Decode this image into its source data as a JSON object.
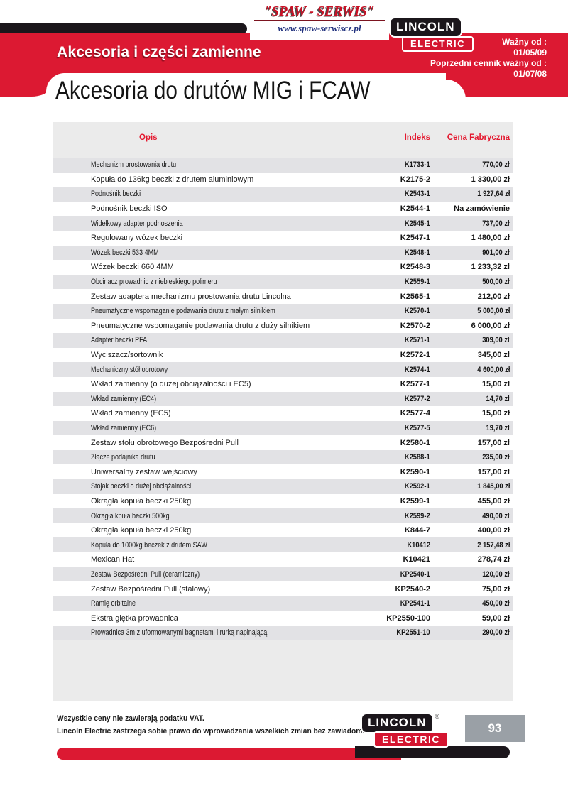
{
  "supplier": {
    "name": "\"SPAW - SERWIS\"",
    "url": "www.spaw-serwiscz.pl"
  },
  "brand": {
    "line1": "LINCOLN",
    "line2": "ELECTRIC",
    "registered": "®"
  },
  "validity": {
    "label_current": "Ważny od :",
    "date_current": "01/05/09",
    "label_previous": "Poprzedni cennik ważny od :",
    "date_previous": "01/07/08"
  },
  "section_title": "Akcesoria i części zamienne",
  "page_title": "Akcesoria do drutów MIG i FCAW",
  "table": {
    "headers": {
      "desc": "Opis",
      "index": "Indeks",
      "price": "Cena Fabryczna"
    },
    "rows": [
      {
        "desc": "Mechanizm prostowania drutu",
        "index": "K1733-1",
        "price": "770,00 zł"
      },
      {
        "desc": "Kopuła do 136kg beczki z drutem aluminiowym",
        "index": "K2175-2",
        "price": "1 330,00 zł"
      },
      {
        "desc": "Podnośnik beczki",
        "index": "K2543-1",
        "price": "1 927,64 zł"
      },
      {
        "desc": "Podnośnik beczki ISO",
        "index": "K2544-1",
        "price": "Na zamówienie"
      },
      {
        "desc": "Widełkowy adapter podnoszenia",
        "index": "K2545-1",
        "price": "737,00 zł"
      },
      {
        "desc": "Regulowany wózek beczki",
        "index": "K2547-1",
        "price": "1 480,00 zł"
      },
      {
        "desc": "Wózek beczki 533 4MM",
        "index": "K2548-1",
        "price": "901,00 zł"
      },
      {
        "desc": "Wózek beczki 660 4MM",
        "index": "K2548-3",
        "price": "1 233,32 zł"
      },
      {
        "desc": "Obcinacz prowadnic z niebieskiego polimeru",
        "index": "K2559-1",
        "price": "500,00 zł"
      },
      {
        "desc": "Zestaw adaptera mechanizmu prostowania drutu Lincolna",
        "index": "K2565-1",
        "price": "212,00 zł"
      },
      {
        "desc": "Pneumatyczne wspomaganie podawania drutu z małym silnikiem",
        "index": "K2570-1",
        "price": "5 000,00 zł"
      },
      {
        "desc": "Pneumatyczne wspomaganie podawania drutu z duży silnikiem",
        "index": "K2570-2",
        "price": "6 000,00 zł"
      },
      {
        "desc": "Adapter beczki PFA",
        "index": "K2571-1",
        "price": "309,00 zł"
      },
      {
        "desc": "Wyciszacz/sortownik",
        "index": "K2572-1",
        "price": "345,00 zł"
      },
      {
        "desc": "Mechaniczny stół obrotowy",
        "index": "K2574-1",
        "price": "4 600,00 zł"
      },
      {
        "desc": "Wkład zamienny (o dużej obciążalności i EC5)",
        "index": "K2577-1",
        "price": "15,00 zł"
      },
      {
        "desc": "Wkład zamienny (EC4)",
        "index": "K2577-2",
        "price": "14,70 zł"
      },
      {
        "desc": "Wkład zamienny (EC5)",
        "index": "K2577-4",
        "price": "15,00 zł"
      },
      {
        "desc": "Wkład zamienny (EC6)",
        "index": "K2577-5",
        "price": "19,70 zł"
      },
      {
        "desc": "Zestaw stołu obrotowego Bezpośredni Pull",
        "index": "K2580-1",
        "price": "157,00 zł"
      },
      {
        "desc": "Złącze podajnika drutu",
        "index": "K2588-1",
        "price": "235,00 zł"
      },
      {
        "desc": "Uniwersalny zestaw wejściowy",
        "index": "K2590-1",
        "price": "157,00 zł"
      },
      {
        "desc": "Stojak beczki o dużej obciążalności",
        "index": "K2592-1",
        "price": "1 845,00 zł"
      },
      {
        "desc": "Okrągła kopuła beczki 250kg",
        "index": "K2599-1",
        "price": "455,00 zł"
      },
      {
        "desc": "Okrągła kpuła beczki 500kg",
        "index": "K2599-2",
        "price": "490,00 zł"
      },
      {
        "desc": "Okrągła kopuła beczki 250kg",
        "index": "K844-7",
        "price": "400,00 zł"
      },
      {
        "desc": "Kopuła do 1000kg beczek z drutem SAW",
        "index": "K10412",
        "price": "2 157,48 zł"
      },
      {
        "desc": "Mexican Hat",
        "index": "K10421",
        "price": "278,74 zł"
      },
      {
        "desc": "Zestaw Bezpośredni Pull (ceramiczny)",
        "index": "KP2540-1",
        "price": "120,00 zł"
      },
      {
        "desc": "Zestaw Bezpośredni Pull (stalowy)",
        "index": "KP2540-2",
        "price": "75,00 zł"
      },
      {
        "desc": "Ramię orbitalne",
        "index": "KP2541-1",
        "price": "450,00 zł"
      },
      {
        "desc": "Ekstra giętka prowadnica",
        "index": "KP2550-100",
        "price": "59,00 zł"
      },
      {
        "desc": "Prowadnica 3m z uformowanymi bagnetami i rurką napinającą",
        "index": "KP2551-10",
        "price": "290,00 zł"
      }
    ]
  },
  "footer": {
    "note1": "Wszystkie ceny nie zawierają podatku VAT.",
    "note2": "Lincoln Electric zastrzega sobie prawo do wprowadzania wszelkich zmian bez zawiadomienia.",
    "page_number": "93"
  },
  "colors": {
    "band_red": "#dc1932",
    "logo_red": "#d41530",
    "bar_black": "#1b161b",
    "table_bg": "#ebebeb",
    "row_shade": "#e2e2e5",
    "header_text_red": "#e4172e",
    "page_badge_gray": "#9aa0a6",
    "url_navy": "#23337f"
  }
}
